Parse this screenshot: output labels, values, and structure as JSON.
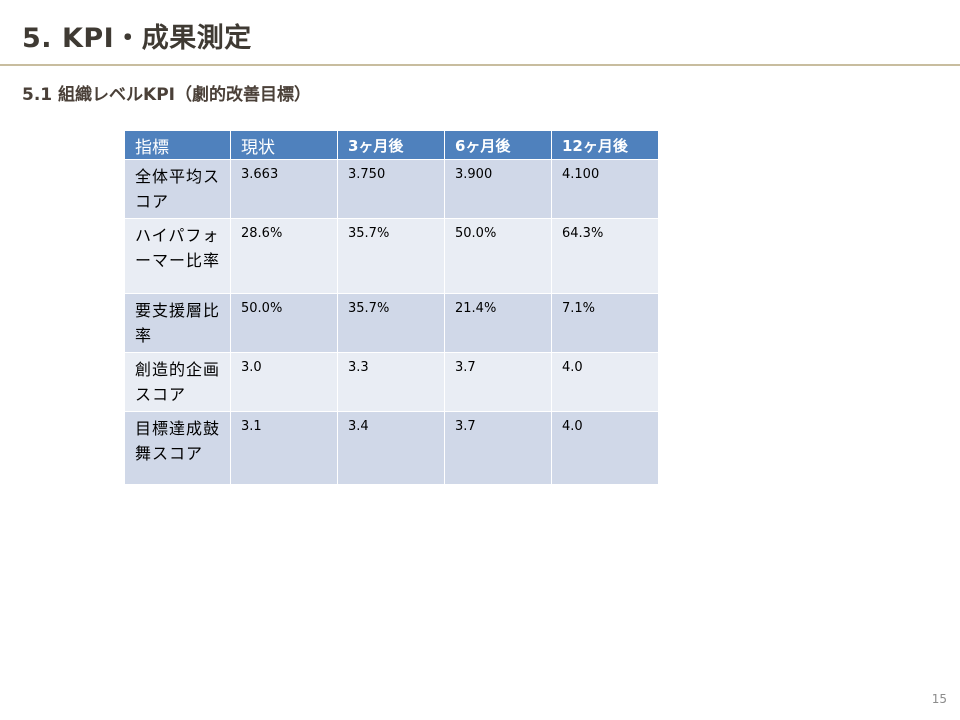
{
  "slide": {
    "title": "5. KPI・成果測定",
    "section_heading": "5.1 組織レベルKPI（劇的改善目標）",
    "page_number": "15"
  },
  "table": {
    "headers": [
      "指標",
      "現状",
      "3ヶ月後",
      "6ヶ月後",
      "12ヶ月後"
    ],
    "rows": [
      {
        "label": "全体平均スコア",
        "values": [
          "3.663",
          "3.750",
          "3.900",
          "4.100"
        ]
      },
      {
        "label": "ハイパフォーマー比率",
        "values": [
          "28.6%",
          "35.7%",
          "50.0%",
          "64.3%"
        ]
      },
      {
        "label": "要支援層比率",
        "values": [
          "50.0%",
          "35.7%",
          "21.4%",
          "7.1%"
        ]
      },
      {
        "label": "創造的企画スコア",
        "values": [
          "3.0",
          "3.3",
          "3.7",
          "4.0"
        ]
      },
      {
        "label": "目標達成鼓舞スコア",
        "values": [
          "3.1",
          "3.4",
          "3.7",
          "4.0"
        ]
      }
    ]
  },
  "colors": {
    "header_bg": "#4f81bd",
    "row_odd_bg": "#d0d8e8",
    "row_even_bg": "#e9edf4",
    "title_rule": "#c8bd9f"
  }
}
